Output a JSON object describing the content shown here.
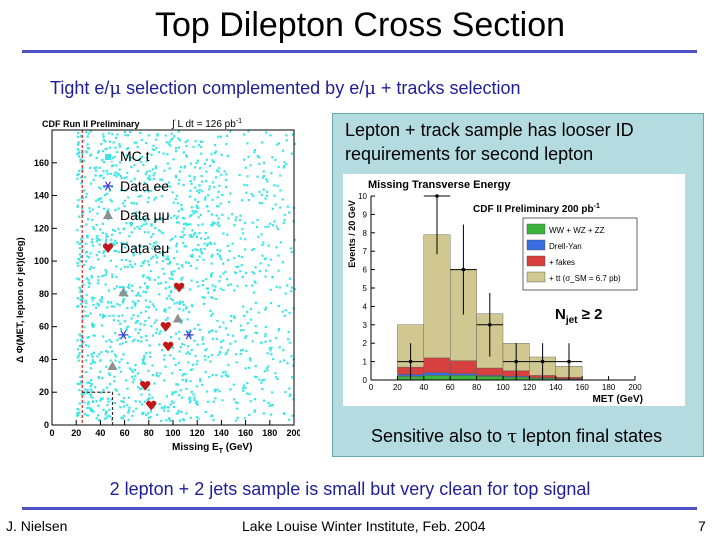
{
  "slide": {
    "title": "Top Dilepton Cross Section",
    "subtitle_pre": "Tight e/",
    "subtitle_mu1": "μ",
    "subtitle_mid": " selection complemented by e/",
    "subtitle_mu2": "μ",
    "subtitle_post": " + tracks selection",
    "panel_text_1": "Lepton + track sample has looser ID",
    "panel_text_2": "requirements for second lepton",
    "panel_bottom_pre": "Sensitive also to ",
    "panel_bottom_tau": "τ",
    "panel_bottom_post": " lepton final states",
    "bottom_text": "2 lepton + 2 jets sample is small but very clean for top signal",
    "footer_left": "J. Nielsen",
    "footer_center": "Lake Louise Winter Institute, Feb. 2004",
    "footer_right": "7"
  },
  "chart_data": [
    {
      "type": "scatter",
      "title_left": "CDF Run II Preliminary",
      "lumi_text": "∫ L dt = 126 pb",
      "lumi_exp": "-1",
      "xlabel": "Missing E",
      "xlabel_sub": "T",
      "xlabel_unit": " (GeV)",
      "ylabel": "Δ Φ(MET, lepton or jet)(deg)",
      "xlim": [
        0,
        200
      ],
      "ylim": [
        0,
        180
      ],
      "xticks": [
        0,
        20,
        40,
        60,
        80,
        100,
        120,
        140,
        160,
        180,
        200
      ],
      "yticks": [
        0,
        20,
        40,
        60,
        80,
        100,
        120,
        140,
        160
      ],
      "cut_region": {
        "met_min": 25,
        "met_soft": 50,
        "dphi_soft": 20
      },
      "legend": [
        "MC t",
        "Data ee",
        "Data μμ",
        "Data eμ"
      ],
      "colors": {
        "mc": "#3ce6e6",
        "ee": "#3a3ad0",
        "mumu": "#909090",
        "emu": "#c01818"
      },
      "series": [
        {
          "name": "Data ee",
          "x": [
            59,
            113
          ],
          "y": [
            55,
            55
          ]
        },
        {
          "name": "Data μμ",
          "x": [
            59,
            104,
            50
          ],
          "y": [
            81,
            65,
            36
          ]
        },
        {
          "name": "Data eμ",
          "x": [
            105,
            94,
            96,
            77,
            82
          ],
          "y": [
            84,
            60,
            48,
            24,
            12
          ]
        }
      ]
    },
    {
      "type": "bar",
      "title": "Missing Transverse Energy",
      "inner_label": "CDF II Preliminary 200 pb",
      "inner_label_exp": "-1",
      "xlabel": "MET (GeV)",
      "ylabel": "Events / 20 GeV",
      "annotation": "N",
      "annotation_sub": "jet",
      "annotation_post": " ≥ 2",
      "xlim": [
        0,
        200
      ],
      "ylim": [
        0,
        10
      ],
      "xticks": [
        0,
        20,
        40,
        60,
        80,
        100,
        120,
        140,
        160,
        180,
        200
      ],
      "yticks": [
        0,
        1,
        2,
        3,
        4,
        5,
        6,
        7,
        8,
        9,
        10
      ],
      "bin_edges": [
        20,
        40,
        60,
        80,
        100,
        120,
        140,
        160
      ],
      "stack": [
        {
          "name": "WW + WZ + ZZ",
          "color": "#3cb43c",
          "values": [
            0.2,
            0.25,
            0.25,
            0.2,
            0.15,
            0.1,
            0.05
          ]
        },
        {
          "name": "Drell-Yan",
          "color": "#3a6ee0",
          "values": [
            0.1,
            0.15,
            0.1,
            0.05,
            0.05,
            0.03,
            0.02
          ]
        },
        {
          "name": "+ fakes",
          "color": "#d84040",
          "values": [
            0.4,
            0.8,
            0.7,
            0.4,
            0.3,
            0.12,
            0.08
          ]
        },
        {
          "name": "+ tt (σ_SM = 6.7 pb)",
          "color": "#d0c890",
          "values": [
            2.3,
            6.7,
            4.95,
            2.95,
            1.5,
            1.0,
            0.6
          ]
        }
      ],
      "data": {
        "x": [
          30,
          50,
          70,
          90,
          110,
          130,
          150
        ],
        "y": [
          1,
          10,
          6,
          3,
          1,
          1,
          1
        ]
      }
    }
  ]
}
